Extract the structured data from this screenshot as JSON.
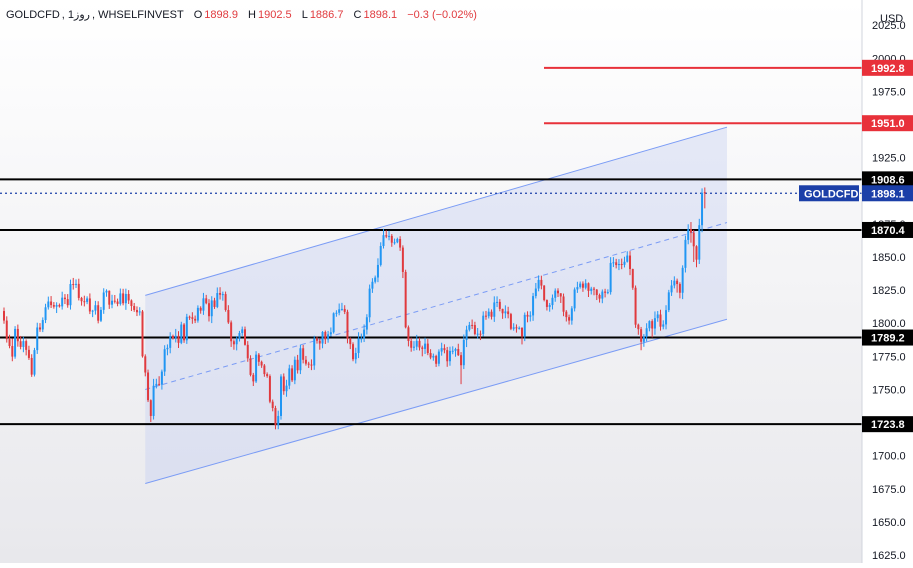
{
  "header": {
    "symbol": "GOLDCFD",
    "timeframe": "1روز",
    "broker": "WHSELFINVEST",
    "open_label": "O",
    "open": "1898.9",
    "high_label": "H",
    "high": "1902.5",
    "low_label": "L",
    "low": "1886.7",
    "close_label": "C",
    "close": "1898.1",
    "change": "−0.3 (−0.02%)"
  },
  "colors": {
    "up": "#2196f3",
    "down": "#e03a3e",
    "channel_line": "#7b9cf5",
    "channel_fill": "#c9d3f2",
    "resistance": "#e8313a",
    "support": "#000000",
    "current_price_tag": "#1b3fa8"
  },
  "chart_data": {
    "type": "candlestick",
    "currency_label": "USD",
    "y_axis_ticks": [
      1625.0,
      1650.0,
      1675.0,
      1700.0,
      1725.0,
      1750.0,
      1775.0,
      1800.0,
      1825.0,
      1850.0,
      1875.0,
      1900.0,
      1925.0,
      1950.0,
      1975.0,
      2000.0,
      2025.0
    ],
    "ylim": [
      1619,
      2044
    ],
    "horizontal_levels": [
      {
        "value": 1992.8,
        "label": "1992.8",
        "style": "resistance"
      },
      {
        "value": 1951.0,
        "label": "1951.0",
        "style": "resistance"
      },
      {
        "value": 1908.6,
        "label": "1908.6",
        "style": "support"
      },
      {
        "value": 1870.4,
        "label": "1870.4",
        "style": "support"
      },
      {
        "value": 1789.2,
        "label": "1789.2",
        "style": "support"
      },
      {
        "value": 1723.8,
        "label": "1723.8",
        "style": "support"
      }
    ],
    "current_price": {
      "symbol": "GOLDCFD",
      "value": 1898.1,
      "label": "1898.1"
    },
    "channel": {
      "lower": {
        "start_bar": 51,
        "start_price": 1679,
        "end_bar": 261,
        "end_price": 1803
      },
      "upper": {
        "start_bar": 51,
        "start_price": 1821,
        "end_bar": 261,
        "end_price": 1948
      },
      "mid": {
        "start_bar": 51,
        "start_price": 1750,
        "end_bar": 261,
        "end_price": 1876
      }
    },
    "closes": [
      1802.0,
      1788.0,
      1782.8,
      1774.8,
      1795.7,
      1786.4,
      1782.1,
      1786.5,
      1779.9,
      1773.8,
      1761.2,
      1779.7,
      1796.8,
      1795.3,
      1802.4,
      1812.0,
      1816.4,
      1813.7,
      1812.5,
      1813.7,
      1812.7,
      1819.3,
      1818.2,
      1813.6,
      1829.6,
      1829.2,
      1829.7,
      1819.1,
      1816.6,
      1816.1,
      1818.7,
      1808.9,
      1809.5,
      1813.6,
      1801.9,
      1810.1,
      1823.2,
      1824.5,
      1814.0,
      1817.0,
      1816.4,
      1814.6,
      1822.5,
      1815.1,
      1822.1,
      1817.2,
      1813.0,
      1810.0,
      1808.3,
      1808.9,
      1775.0,
      1762.8,
      1741.9,
      1730.0,
      1752.8,
      1754.2,
      1753.7,
      1763.5,
      1780.4,
      1781.4,
      1790.4,
      1788.7,
      1790.5,
      1785.2,
      1799.0,
      1787.1,
      1804.9,
      1804.5,
      1803.3,
      1802.0,
      1811.6,
      1809.5,
      1818.8,
      1815.1,
      1805.3,
      1817.2,
      1812.3,
      1822.8,
      1821.5,
      1822.0,
      1810.0,
      1800.6,
      1786.4,
      1784.1,
      1788.2,
      1792.6,
      1795.4,
      1783.7,
      1773.5,
      1761.0,
      1756.1,
      1776.3,
      1770.9,
      1768.1,
      1761.6,
      1760.1,
      1740.8,
      1736.0,
      1723.0,
      1730.0,
      1759.8,
      1748.7,
      1752.9,
      1765.9,
      1756.9,
      1772.4,
      1764.5,
      1781.1,
      1772.4,
      1769.5,
      1768.8,
      1768.1,
      1788.3,
      1786.8,
      1784.7,
      1793.4,
      1787.8,
      1791.6,
      1793.2,
      1807.5,
      1807.9,
      1810.5,
      1810.8,
      1808.6,
      1788.3,
      1784.2,
      1772.8,
      1777.5,
      1788.5,
      1788.6,
      1795.2,
      1804.5,
      1826.1,
      1831.3,
      1834.5,
      1844.0,
      1858.3,
      1866.5,
      1865.4,
      1865.9,
      1860.8,
      1861.1,
      1863.6,
      1857.1,
      1838.7,
      1796.9,
      1786.6,
      1781.5,
      1782.3,
      1786.7,
      1781.7,
      1780.6,
      1784.6,
      1777.5,
      1774.1,
      1775.3,
      1769.4,
      1778.6,
      1781.2,
      1779.7,
      1771.3,
      1779.1,
      1779.2,
      1780.5,
      1775.9,
      1768.3,
      1787.4,
      1795.1,
      1798.7,
      1798.6,
      1791.8,
      1792.1,
      1791.9,
      1805.7,
      1805.3,
      1808.7,
      1804.9,
      1815.7,
      1816.1,
      1810.8,
      1807.5,
      1808.9,
      1806.9,
      1795.8,
      1796.9,
      1796.4,
      1796.5,
      1790.1,
      1806.3,
      1805.0,
      1805.9,
      1820.5,
      1826.2,
      1832.7,
      1828.4,
      1817.5,
      1812.3,
      1813.7,
      1819.2,
      1824.6,
      1822.6,
      1820.2,
      1808.7,
      1804.6,
      1802.0,
      1811.2,
      1825.5,
      1827.3,
      1829.9,
      1826.8,
      1830.2,
      1824.4,
      1826.1,
      1825.4,
      1821.3,
      1818.6,
      1823.9,
      1823.0,
      1823.5,
      1845.5,
      1846.0,
      1843.9,
      1844.7,
      1844.1,
      1846.4,
      1851.1,
      1840.9,
      1826.8,
      1798.9,
      1795.5,
      1786.0,
      1789.8,
      1796.2,
      1801.6,
      1796.0,
      1803.8,
      1806.6,
      1797.4,
      1799.1,
      1809.9,
      1823.3,
      1828.5,
      1832.1,
      1829.6,
      1823.0,
      1841.8,
      1862.9,
      1871.0,
      1868.3,
      1858.1,
      1848.0,
      1874.0,
      1898.4,
      1898.1
    ],
    "opens": [
      1809.2,
      1802.0,
      1788.0,
      1782.8,
      1774.8,
      1795.7,
      1786.4,
      1782.1,
      1786.5,
      1779.9,
      1773.8,
      1761.2,
      1779.7,
      1796.8,
      1795.3,
      1802.4,
      1812.0,
      1816.4,
      1813.7,
      1812.5,
      1813.7,
      1812.7,
      1819.3,
      1818.2,
      1813.6,
      1829.6,
      1829.2,
      1829.7,
      1819.1,
      1816.6,
      1816.1,
      1818.7,
      1808.9,
      1809.5,
      1813.6,
      1801.9,
      1810.1,
      1823.2,
      1824.5,
      1814.0,
      1817.0,
      1816.4,
      1814.6,
      1822.5,
      1815.1,
      1822.1,
      1817.2,
      1813.0,
      1810.0,
      1808.3,
      1808.9,
      1775.0,
      1762.8,
      1741.9,
      1730.0,
      1752.8,
      1754.2,
      1753.7,
      1763.5,
      1780.4,
      1781.4,
      1790.4,
      1788.7,
      1790.5,
      1785.2,
      1799.0,
      1787.1,
      1804.9,
      1804.5,
      1803.3,
      1802.0,
      1811.6,
      1809.5,
      1818.8,
      1815.1,
      1805.3,
      1817.2,
      1812.3,
      1822.8,
      1821.5,
      1822.0,
      1810.0,
      1800.6,
      1786.4,
      1784.1,
      1788.2,
      1792.6,
      1795.4,
      1783.7,
      1773.5,
      1761.0,
      1756.1,
      1776.3,
      1770.9,
      1768.1,
      1761.6,
      1760.1,
      1740.8,
      1736.0,
      1723.0,
      1730.0,
      1759.8,
      1748.7,
      1752.9,
      1765.9,
      1756.9,
      1772.4,
      1764.5,
      1781.1,
      1772.4,
      1769.5,
      1768.8,
      1768.1,
      1788.3,
      1786.8,
      1784.7,
      1793.4,
      1787.8,
      1791.6,
      1793.2,
      1807.5,
      1807.9,
      1810.5,
      1810.8,
      1808.6,
      1788.3,
      1784.2,
      1772.8,
      1777.5,
      1788.5,
      1788.6,
      1795.2,
      1804.5,
      1826.1,
      1831.3,
      1834.5,
      1844.0,
      1858.3,
      1866.5,
      1865.4,
      1865.9,
      1860.8,
      1861.1,
      1863.6,
      1857.1,
      1838.7,
      1796.9,
      1786.6,
      1781.5,
      1782.3,
      1786.7,
      1781.7,
      1780.6,
      1784.6,
      1777.5,
      1774.1,
      1775.3,
      1769.4,
      1778.6,
      1781.2,
      1779.7,
      1771.3,
      1779.1,
      1779.2,
      1780.5,
      1775.9,
      1768.3,
      1787.4,
      1795.1,
      1798.7,
      1798.6,
      1791.8,
      1792.1,
      1791.9,
      1805.7,
      1805.3,
      1808.7,
      1804.9,
      1815.7,
      1816.1,
      1810.8,
      1807.5,
      1808.9,
      1806.9,
      1795.8,
      1796.9,
      1796.4,
      1796.5,
      1790.1,
      1806.3,
      1805.0,
      1805.9,
      1820.5,
      1826.2,
      1832.7,
      1828.4,
      1817.5,
      1812.3,
      1813.7,
      1819.2,
      1824.6,
      1822.6,
      1820.2,
      1808.7,
      1804.6,
      1802.0,
      1811.2,
      1825.5,
      1827.3,
      1829.9,
      1826.8,
      1830.2,
      1824.4,
      1826.1,
      1825.4,
      1821.3,
      1818.6,
      1823.9,
      1823.0,
      1823.5,
      1845.5,
      1846.0,
      1843.9,
      1844.7,
      1844.1,
      1846.4,
      1851.1,
      1840.9,
      1826.8,
      1798.9,
      1795.5,
      1786.0,
      1789.8,
      1796.2,
      1801.6,
      1796.0,
      1803.8,
      1806.6,
      1797.4,
      1799.1,
      1809.9,
      1823.3,
      1828.5,
      1832.1,
      1829.6,
      1823.0,
      1841.8,
      1862.9,
      1871.0,
      1868.3,
      1858.1,
      1848.0,
      1874.0,
      1898.9
    ],
    "highs": [
      1811.9,
      1805.2,
      1791.3,
      1788.5,
      1797.8,
      1799.0,
      1790.4,
      1789.7,
      1787.8,
      1783.0,
      1776.6,
      1781.4,
      1800.4,
      1800.1,
      1804.4,
      1814.7,
      1820.1,
      1820.5,
      1816.0,
      1815.8,
      1814.9,
      1823.8,
      1822.0,
      1822.0,
      1832.9,
      1834.2,
      1833.1,
      1833.6,
      1819.9,
      1820.8,
      1820.3,
      1822.5,
      1810.1,
      1816.9,
      1816.6,
      1812.3,
      1826.4,
      1825.6,
      1824.8,
      1821.5,
      1821.3,
      1818.6,
      1826.2,
      1826.0,
      1826.1,
      1825.0,
      1818.0,
      1815.3,
      1812.7,
      1812.1,
      1810.0,
      1776.5,
      1765.0,
      1742.5,
      1758.0,
      1758.1,
      1760.0,
      1765.0,
      1783.4,
      1784.0,
      1793.2,
      1791.4,
      1795.7,
      1794.0,
      1801.1,
      1800.1,
      1807.1,
      1805.8,
      1808.3,
      1805.8,
      1813.5,
      1812.8,
      1822.9,
      1821.4,
      1818.2,
      1820.4,
      1819.2,
      1827.0,
      1827.2,
      1823.9,
      1823.9,
      1813.6,
      1802.1,
      1787.8,
      1790.3,
      1794.2,
      1797.5,
      1797.5,
      1786.5,
      1775.8,
      1762.5,
      1778.9,
      1777.5,
      1771.8,
      1769.2,
      1762.9,
      1761.4,
      1742.4,
      1737.7,
      1734.0,
      1761.5,
      1762.1,
      1757.3,
      1768.7,
      1768.3,
      1774.9,
      1776.1,
      1783.9,
      1783.6,
      1775.3,
      1770.9,
      1772.7,
      1790.5,
      1789.8,
      1788.3,
      1794.1,
      1794.5,
      1794.2,
      1796.8,
      1808.2,
      1809.8,
      1814.9,
      1815.4,
      1813.6,
      1810.2,
      1789.3,
      1785.6,
      1781.5,
      1793.2,
      1792.2,
      1799.1,
      1806.8,
      1829.2,
      1834.0,
      1836.0,
      1849.0,
      1861.1,
      1871.2,
      1870.1,
      1869.8,
      1867.3,
      1863.9,
      1864.6,
      1865.7,
      1858.8,
      1840.4,
      1798.3,
      1789.1,
      1786.5,
      1791.2,
      1789.1,
      1783.1,
      1789.1,
      1788.0,
      1780.4,
      1777.1,
      1776.2,
      1780.3,
      1785.3,
      1784.1,
      1782.1,
      1782.3,
      1782.6,
      1781.5,
      1784.5,
      1778.2,
      1791.5,
      1798.1,
      1801.0,
      1802.8,
      1801.1,
      1796.4,
      1794.5,
      1808.9,
      1809.3,
      1811.2,
      1810.4,
      1820.3,
      1820.3,
      1818.2,
      1811.0,
      1813.5,
      1812.4,
      1807.8,
      1800.0,
      1799.1,
      1797.6,
      1797.0,
      1808.1,
      1809.0,
      1809.0,
      1822.9,
      1830.4,
      1836.1,
      1835.9,
      1828.8,
      1818.0,
      1815.3,
      1821.7,
      1826.3,
      1826.4,
      1822.7,
      1822.4,
      1809.9,
      1806.5,
      1812.9,
      1827.0,
      1831.3,
      1831.5,
      1831.6,
      1833.2,
      1830.8,
      1827.5,
      1827.4,
      1825.8,
      1822.4,
      1825.5,
      1826.0,
      1825.6,
      1849.9,
      1849.9,
      1848.6,
      1848.4,
      1848.8,
      1850.2,
      1854.3,
      1854.4,
      1841.2,
      1828.5,
      1799.7,
      1797.2,
      1791.8,
      1800.0,
      1802.2,
      1803.0,
      1808.9,
      1809.2,
      1810.2,
      1802.2,
      1813.6,
      1825.2,
      1832.6,
      1835.4,
      1833.7,
      1830.9,
      1843.7,
      1866.2,
      1874.7,
      1876.4,
      1870.4,
      1858.9,
      1878.8,
      1901.8,
      1902.5
    ],
    "lows": [
      1799.6,
      1785.4,
      1781.1,
      1771.3,
      1773.2,
      1782.3,
      1780.3,
      1778.1,
      1775.7,
      1772.3,
      1759.5,
      1759.8,
      1776.8,
      1793.5,
      1793.3,
      1800.1,
      1810.3,
      1811.5,
      1811.0,
      1807.7,
      1811.8,
      1810.3,
      1814.5,
      1811.7,
      1810.3,
      1825.4,
      1826.6,
      1817.2,
      1813.3,
      1812.7,
      1814.4,
      1806.9,
      1804.6,
      1806.5,
      1799.9,
      1800.9,
      1807.1,
      1820.0,
      1810.8,
      1811.3,
      1814.9,
      1812.8,
      1813.3,
      1813.5,
      1810.1,
      1814.5,
      1809.2,
      1808.6,
      1805.4,
      1805.8,
      1774.0,
      1759.9,
      1740.5,
      1725.4,
      1727.3,
      1750.8,
      1752.6,
      1749.9,
      1760.2,
      1775.8,
      1777.3,
      1787.6,
      1785.5,
      1781.3,
      1784.2,
      1785.2,
      1784.4,
      1802.5,
      1799.6,
      1800.1,
      1800.4,
      1807.2,
      1806.3,
      1814.3,
      1801.3,
      1800.1,
      1810.8,
      1811.4,
      1817.9,
      1817.0,
      1808.7,
      1799.5,
      1782.1,
      1780.0,
      1779.5,
      1786.2,
      1790.5,
      1783.1,
      1770.9,
      1759.9,
      1752.6,
      1754.9,
      1767.8,
      1766.3,
      1759.6,
      1758.8,
      1739.6,
      1733.5,
      1719.9,
      1720.0,
      1727.2,
      1746.0,
      1744.5,
      1750.2,
      1755.6,
      1754.0,
      1762.0,
      1761.6,
      1769.7,
      1768.0,
      1766.2,
      1764.6,
      1764.8,
      1784.6,
      1780.0,
      1781.1,
      1784.3,
      1785.3,
      1790.1,
      1792.2,
      1804.9,
      1806.0,
      1809.4,
      1806.9,
      1784.8,
      1780.5,
      1771.3,
      1769.6,
      1773.7,
      1785.4,
      1785.8,
      1791.5,
      1800.7,
      1822.9,
      1830.0,
      1831.0,
      1842.8,
      1856.4,
      1864.2,
      1862.6,
      1857.7,
      1859.3,
      1860.4,
      1854.6,
      1834.1,
      1796.1,
      1782.5,
      1778.5,
      1779.2,
      1779.7,
      1779.4,
      1775.0,
      1776.8,
      1775.9,
      1772.8,
      1771.7,
      1767.0,
      1767.5,
      1775.5,
      1777.3,
      1767.1,
      1767.9,
      1776.6,
      1774.7,
      1775.3,
      1754.0,
      1765.4,
      1782.0,
      1793.8,
      1795.7,
      1790.8,
      1788.3,
      1787.3,
      1789.9,
      1802.6,
      1803.6,
      1802.8,
      1801.0,
      1812.2,
      1809.0,
      1803.3,
      1803.8,
      1803.7,
      1794.8,
      1794.4,
      1792.9,
      1795.2,
      1784.0,
      1786.5,
      1800.7,
      1801.3,
      1801.8,
      1818.7,
      1824.1,
      1825.6,
      1816.5,
      1809.6,
      1808.7,
      1810.4,
      1816.2,
      1819.8,
      1815.3,
      1805.3,
      1801.3,
      1799.0,
      1798.9,
      1808.9,
      1822.9,
      1826.1,
      1823.7,
      1825.5,
      1819.8,
      1821.7,
      1821.1,
      1817.5,
      1815.6,
      1815.1,
      1819.5,
      1821.9,
      1821.6,
      1842.4,
      1841.4,
      1840.1,
      1840.8,
      1842.1,
      1845.8,
      1836.3,
      1825.2,
      1796.5,
      1791.3,
      1779.6,
      1782.2,
      1786.3,
      1793.9,
      1789.3,
      1791.3,
      1801.1,
      1794.4,
      1795.4,
      1795.4,
      1808.4,
      1820.6,
      1826.3,
      1823.1,
      1818.8,
      1818.2,
      1838.3,
      1859.6,
      1860.8,
      1846.2,
      1842.3,
      1844.7,
      1868.7,
      1886.7
    ]
  }
}
